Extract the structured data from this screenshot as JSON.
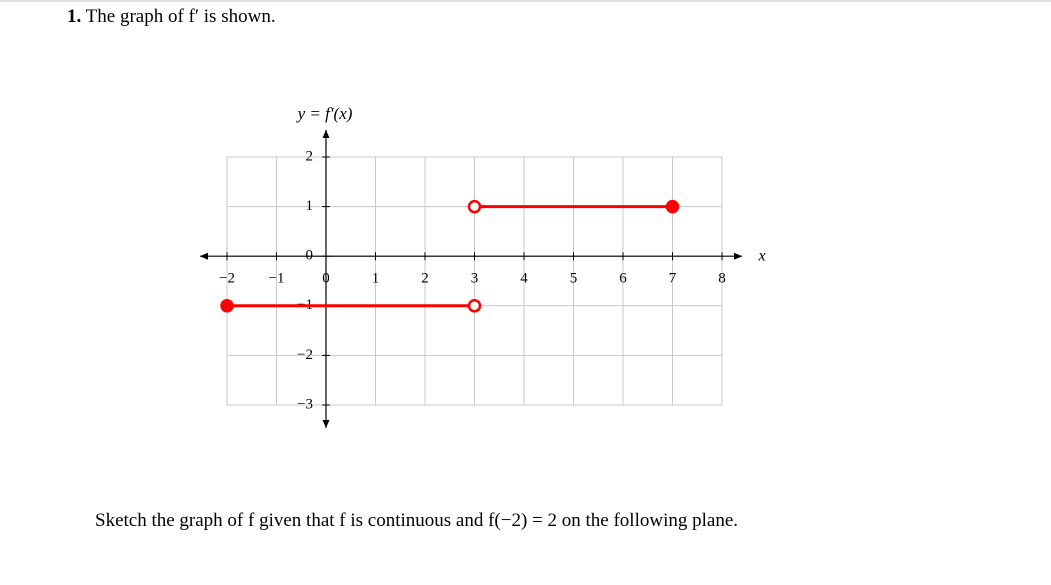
{
  "problem": {
    "number": "1.",
    "text": "The graph of f′ is shown."
  },
  "chart_data": {
    "type": "line",
    "title": "y = f′(x)",
    "x_label": "x",
    "x": [
      -2,
      3,
      3,
      3,
      7
    ],
    "values": [
      -1,
      -1,
      null,
      1,
      1
    ],
    "open_endpoints": [
      false,
      true,
      null,
      true,
      false
    ],
    "color": "#ff0000",
    "xlim": [
      -2,
      8
    ],
    "ylim": [
      -3,
      2
    ],
    "xticks": [
      {
        "value": -2,
        "label": "−2"
      },
      {
        "value": -1,
        "label": "−1"
      },
      0,
      1,
      2,
      3,
      4,
      5,
      6,
      7,
      8
    ],
    "yticks": [
      {
        "value": -3,
        "label": "−3"
      },
      {
        "value": -2,
        "label": "−2"
      },
      {
        "value": -1,
        "label": "−1"
      },
      0,
      1,
      2
    ],
    "grid": true
  },
  "instruction": "Sketch the graph of f given that f is continuous and f(−2) = 2 on the following plane."
}
